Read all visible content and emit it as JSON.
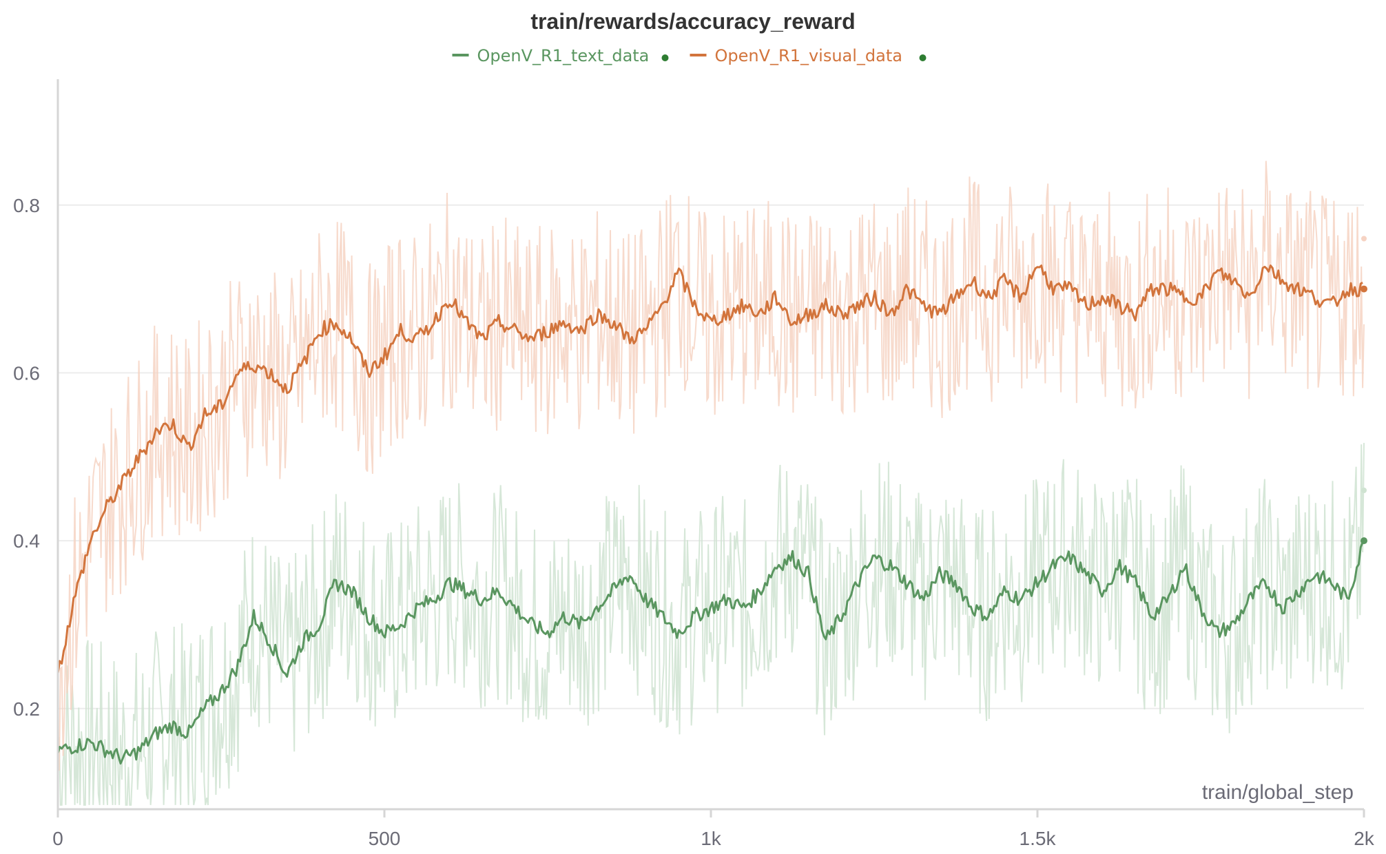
{
  "chart_data": {
    "type": "line",
    "title": "train/rewards/accuracy_reward",
    "xlabel": "train/global_step",
    "ylabel": "",
    "xlim": [
      0,
      2000
    ],
    "ylim": [
      0.08,
      0.95
    ],
    "x_ticks": [
      {
        "value": 0,
        "label": "0"
      },
      {
        "value": 500,
        "label": "500"
      },
      {
        "value": 1000,
        "label": "1k"
      },
      {
        "value": 1500,
        "label": "1.5k"
      },
      {
        "value": 2000,
        "label": "2k"
      }
    ],
    "y_ticks": [
      {
        "value": 0.2,
        "label": "0.2"
      },
      {
        "value": 0.4,
        "label": "0.4"
      },
      {
        "value": 0.6,
        "label": "0.6"
      },
      {
        "value": 0.8,
        "label": "0.8"
      }
    ],
    "grid": true,
    "legend_position": "top-center",
    "series": [
      {
        "name": "OpenV_R1_text_data",
        "color": "#5a9660",
        "raw_color": "#cfe3d1",
        "x": [
          0,
          25,
          50,
          75,
          100,
          125,
          150,
          175,
          200,
          225,
          250,
          275,
          300,
          325,
          350,
          375,
          400,
          425,
          450,
          475,
          500,
          525,
          550,
          575,
          600,
          625,
          650,
          675,
          700,
          725,
          750,
          775,
          800,
          825,
          850,
          875,
          900,
          925,
          950,
          975,
          1000,
          1025,
          1050,
          1075,
          1100,
          1125,
          1150,
          1175,
          1200,
          1225,
          1250,
          1275,
          1300,
          1325,
          1350,
          1375,
          1400,
          1425,
          1450,
          1475,
          1500,
          1525,
          1550,
          1575,
          1600,
          1625,
          1650,
          1675,
          1700,
          1725,
          1750,
          1775,
          1800,
          1825,
          1850,
          1875,
          1900,
          1925,
          1950,
          1975,
          2000
        ],
        "y": [
          0.15,
          0.155,
          0.16,
          0.15,
          0.14,
          0.15,
          0.17,
          0.18,
          0.17,
          0.2,
          0.22,
          0.25,
          0.31,
          0.28,
          0.24,
          0.28,
          0.3,
          0.35,
          0.34,
          0.31,
          0.29,
          0.3,
          0.32,
          0.33,
          0.35,
          0.34,
          0.33,
          0.34,
          0.32,
          0.3,
          0.29,
          0.31,
          0.3,
          0.32,
          0.34,
          0.36,
          0.33,
          0.31,
          0.29,
          0.31,
          0.32,
          0.33,
          0.32,
          0.34,
          0.37,
          0.38,
          0.36,
          0.28,
          0.31,
          0.35,
          0.38,
          0.37,
          0.35,
          0.33,
          0.36,
          0.35,
          0.32,
          0.31,
          0.34,
          0.33,
          0.35,
          0.37,
          0.38,
          0.36,
          0.34,
          0.37,
          0.35,
          0.31,
          0.33,
          0.37,
          0.32,
          0.29,
          0.3,
          0.33,
          0.35,
          0.32,
          0.34,
          0.36,
          0.35,
          0.33,
          0.4
        ]
      },
      {
        "name": "OpenV_R1_visual_data",
        "color": "#d2743c",
        "raw_color": "#f6d3c3",
        "x": [
          0,
          25,
          50,
          75,
          100,
          125,
          150,
          175,
          200,
          225,
          250,
          275,
          300,
          325,
          350,
          375,
          400,
          425,
          450,
          475,
          500,
          525,
          550,
          575,
          600,
          625,
          650,
          675,
          700,
          725,
          750,
          775,
          800,
          825,
          850,
          875,
          900,
          925,
          950,
          975,
          1000,
          1025,
          1050,
          1075,
          1100,
          1125,
          1150,
          1175,
          1200,
          1225,
          1250,
          1275,
          1300,
          1325,
          1350,
          1375,
          1400,
          1425,
          1450,
          1475,
          1500,
          1525,
          1550,
          1575,
          1600,
          1625,
          1650,
          1675,
          1700,
          1725,
          1750,
          1775,
          1800,
          1825,
          1850,
          1875,
          1900,
          1925,
          1950,
          1975,
          2000
        ],
        "y": [
          0.24,
          0.33,
          0.4,
          0.44,
          0.47,
          0.5,
          0.53,
          0.54,
          0.51,
          0.55,
          0.56,
          0.6,
          0.61,
          0.6,
          0.58,
          0.61,
          0.65,
          0.66,
          0.64,
          0.6,
          0.62,
          0.65,
          0.64,
          0.66,
          0.69,
          0.66,
          0.64,
          0.66,
          0.65,
          0.64,
          0.65,
          0.66,
          0.65,
          0.67,
          0.66,
          0.64,
          0.65,
          0.68,
          0.72,
          0.68,
          0.66,
          0.67,
          0.68,
          0.67,
          0.69,
          0.66,
          0.67,
          0.68,
          0.67,
          0.68,
          0.69,
          0.67,
          0.7,
          0.68,
          0.67,
          0.69,
          0.71,
          0.69,
          0.71,
          0.69,
          0.73,
          0.7,
          0.7,
          0.68,
          0.69,
          0.68,
          0.67,
          0.7,
          0.7,
          0.69,
          0.69,
          0.72,
          0.71,
          0.69,
          0.73,
          0.71,
          0.7,
          0.69,
          0.68,
          0.7,
          0.7
        ]
      }
    ]
  }
}
